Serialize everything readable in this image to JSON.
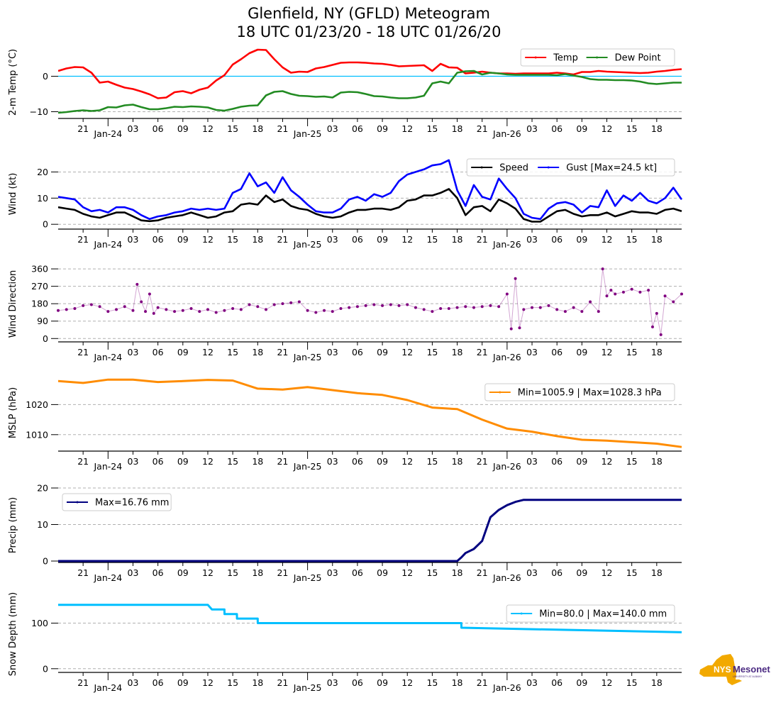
{
  "title": {
    "line1": "Glenfield, NY (GFLD) Meteogram",
    "line2": "18 UTC 01/23/20 - 18 UTC 01/26/20"
  },
  "logo": {
    "main": "NYS",
    "brand": "Mesonet",
    "sub": "UNIVERSITY AT ALBANY",
    "state_color": "#f2a900",
    "brand_color": "#4b2a82"
  },
  "x_axis": {
    "start_hour": -3,
    "end_hour": 72,
    "hour_ticks": [
      "21",
      "03",
      "06",
      "09",
      "12",
      "15",
      "18",
      "21",
      "03",
      "06",
      "09",
      "12",
      "15",
      "18",
      "21",
      "03",
      "06",
      "09",
      "12",
      "15",
      "18"
    ],
    "hour_tick_positions": [
      0,
      6,
      9,
      12,
      15,
      18,
      21,
      24,
      30,
      33,
      36,
      39,
      42,
      45,
      48,
      54,
      57,
      60,
      63,
      66,
      69
    ],
    "date_labels": [
      {
        "label": "Jan-24",
        "hour": 3
      },
      {
        "label": "Jan-25",
        "hour": 27
      },
      {
        "label": "Jan-26",
        "hour": 51
      }
    ],
    "major_tick_hours": [
      3,
      27,
      51
    ]
  },
  "chart_data": [
    {
      "type": "line",
      "name": "temperature",
      "ylabel": "2-m Temp ($^\\circ$C)",
      "ylabel_display": "2-m Temp (°C)",
      "ylim": [
        -11.5,
        8.5
      ],
      "yticks": [
        0,
        -10
      ],
      "grid_y": [
        -10
      ],
      "zero_line": {
        "value": 0,
        "color": "#00bfff"
      },
      "legend": {
        "placement": "top-right",
        "entries": [
          "Temp",
          "Dew Point"
        ]
      },
      "x_hours": [
        -3,
        -2,
        -1,
        0,
        1,
        2,
        3,
        4,
        5,
        6,
        7,
        8,
        9,
        10,
        11,
        12,
        13,
        14,
        15,
        16,
        17,
        18,
        19,
        20,
        21,
        22,
        23,
        24,
        25,
        26,
        27,
        28,
        29,
        30,
        31,
        32,
        33,
        34,
        35,
        36,
        37,
        38,
        39,
        40,
        41,
        42,
        43,
        44,
        45,
        46,
        47,
        48,
        49,
        50,
        51,
        52,
        53,
        54,
        55,
        56,
        57,
        58,
        59,
        60,
        61,
        62,
        63,
        64,
        65,
        66,
        67,
        68,
        69,
        70,
        71,
        72
      ],
      "series": [
        {
          "name": "Temp",
          "color": "#ff0000",
          "values": [
            1.5,
            2.2,
            2.6,
            2.5,
            1.0,
            -1.8,
            -1.5,
            -2.4,
            -3.2,
            -3.6,
            -4.3,
            -5.1,
            -6.2,
            -6.0,
            -4.5,
            -4.2,
            -4.8,
            -3.8,
            -3.2,
            -1.2,
            0.3,
            3.3,
            4.8,
            6.5,
            7.5,
            7.4,
            4.8,
            2.5,
            1.0,
            1.3,
            1.2,
            2.2,
            2.6,
            3.2,
            3.8,
            3.9,
            3.9,
            3.8,
            3.6,
            3.5,
            3.2,
            2.8,
            2.9,
            3.0,
            3.1,
            1.5,
            3.5,
            2.5,
            2.4,
            0.8,
            1.0,
            1.3,
            1.0,
            0.8,
            0.8,
            0.7,
            0.8,
            0.8,
            0.8,
            0.8,
            1.0,
            0.8,
            0.5,
            1.2,
            1.2,
            1.5,
            1.3,
            1.2,
            1.1,
            1.0,
            0.9,
            1.0,
            1.3,
            1.5,
            1.8,
            2.0
          ]
        },
        {
          "name": "Dew Point",
          "color": "#228b22",
          "values": [
            -10.3,
            -10.1,
            -9.8,
            -9.6,
            -9.8,
            -9.6,
            -8.7,
            -8.8,
            -8.2,
            -8.0,
            -8.7,
            -9.3,
            -9.3,
            -9.0,
            -8.6,
            -8.7,
            -8.5,
            -8.6,
            -8.8,
            -9.5,
            -9.7,
            -9.2,
            -8.6,
            -8.3,
            -8.2,
            -5.4,
            -4.4,
            -4.2,
            -5.0,
            -5.5,
            -5.6,
            -5.8,
            -5.7,
            -6.0,
            -4.6,
            -4.4,
            -4.5,
            -5.0,
            -5.6,
            -5.7,
            -6.0,
            -6.2,
            -6.2,
            -6.0,
            -5.5,
            -2.0,
            -1.5,
            -2.0,
            1.0,
            1.4,
            1.5,
            0.5,
            1.0,
            0.8,
            0.5,
            0.4,
            0.4,
            0.4,
            0.4,
            0.4,
            0.3,
            0.6,
            0.2,
            -0.2,
            -0.8,
            -1.0,
            -1.0,
            -1.1,
            -1.1,
            -1.2,
            -1.5,
            -2.0,
            -2.2,
            -2.0,
            -1.8,
            -1.8
          ]
        }
      ]
    },
    {
      "type": "line",
      "name": "wind",
      "ylabel": "Wind (kt)",
      "ylim": [
        -1.3,
        25
      ],
      "yticks": [
        0,
        10,
        20
      ],
      "grid_y": [
        0,
        10,
        20
      ],
      "legend": {
        "placement": "top-right",
        "entries": [
          "Speed",
          "Gust [Max=24.5 kt]"
        ]
      },
      "x_hours": [
        -3,
        -2,
        -1,
        0,
        1,
        2,
        3,
        4,
        5,
        6,
        7,
        8,
        9,
        10,
        11,
        12,
        13,
        14,
        15,
        16,
        17,
        18,
        19,
        20,
        21,
        22,
        23,
        24,
        25,
        26,
        27,
        28,
        29,
        30,
        31,
        32,
        33,
        34,
        35,
        36,
        37,
        38,
        39,
        40,
        41,
        42,
        43,
        44,
        45,
        46,
        47,
        48,
        49,
        50,
        51,
        52,
        53,
        54,
        55,
        56,
        57,
        58,
        59,
        60,
        61,
        62,
        63,
        64,
        65,
        66,
        67,
        68,
        69,
        70,
        71,
        72
      ],
      "series": [
        {
          "name": "Speed",
          "color": "#000000",
          "values": [
            6.5,
            6.0,
            5.5,
            4.0,
            3.0,
            2.5,
            3.5,
            4.5,
            4.5,
            3.0,
            1.5,
            1.2,
            1.5,
            2.5,
            3.0,
            3.5,
            4.5,
            3.5,
            2.5,
            3.0,
            4.5,
            5.0,
            7.5,
            8.0,
            7.5,
            11.0,
            8.5,
            9.5,
            7.0,
            6.0,
            5.5,
            4.0,
            3.0,
            2.5,
            3.0,
            4.5,
            5.5,
            5.5,
            6.0,
            6.0,
            5.5,
            6.5,
            9.0,
            9.5,
            11.0,
            11.0,
            12.0,
            13.5,
            10.0,
            3.5,
            6.5,
            7.0,
            5.0,
            9.5,
            8.0,
            6.0,
            2.0,
            1.0,
            1.0,
            3.0,
            5.0,
            5.5,
            4.0,
            3.0,
            3.5,
            3.5,
            4.5,
            3.0,
            4.0,
            5.0,
            4.5,
            4.5,
            4.0,
            5.5,
            6.0,
            5.0
          ]
        },
        {
          "name": "Gust",
          "color": "#0000ff",
          "values": [
            10.5,
            10.0,
            9.5,
            6.5,
            5.0,
            5.5,
            4.5,
            6.5,
            6.5,
            5.5,
            3.5,
            2.0,
            3.0,
            3.5,
            4.5,
            5.0,
            6.0,
            5.5,
            6.0,
            5.5,
            6.0,
            12.0,
            13.5,
            19.5,
            14.5,
            16.0,
            12.0,
            18.0,
            13.0,
            10.5,
            7.5,
            5.0,
            4.5,
            4.5,
            6.0,
            9.5,
            10.5,
            9.0,
            11.5,
            10.5,
            12.0,
            16.5,
            19.0,
            20.0,
            21.0,
            22.5,
            23.0,
            24.5,
            13.0,
            7.0,
            15.0,
            10.5,
            9.5,
            17.5,
            13.5,
            10.0,
            4.0,
            2.5,
            2.0,
            6.0,
            8.0,
            8.5,
            7.5,
            4.5,
            7.0,
            6.5,
            13.0,
            7.0,
            11.0,
            9.0,
            12.0,
            9.0,
            8.0,
            10.0,
            14.0,
            9.5
          ]
        }
      ]
    },
    {
      "type": "scatter",
      "name": "wind_direction",
      "ylabel": "Wind Direction",
      "ylim": [
        -10,
        375
      ],
      "yticks": [
        0,
        90,
        180,
        270,
        360
      ],
      "grid_y": [
        0,
        90,
        180,
        270,
        360
      ],
      "color": "#800080",
      "x_hours": [
        -3,
        -2,
        -1,
        0,
        1,
        2,
        3,
        4,
        5,
        6,
        6.5,
        7,
        7.5,
        8,
        8.5,
        9,
        10,
        11,
        12,
        13,
        14,
        15,
        16,
        17,
        18,
        19,
        20,
        21,
        22,
        23,
        24,
        25,
        26,
        27,
        28,
        29,
        30,
        31,
        32,
        33,
        34,
        35,
        36,
        37,
        38,
        39,
        40,
        41,
        42,
        43,
        44,
        45,
        46,
        47,
        48,
        49,
        50,
        51,
        51.5,
        52,
        52.5,
        53,
        54,
        55,
        56,
        57,
        58,
        59,
        60,
        61,
        62,
        62.5,
        63,
        63.5,
        64,
        65,
        66,
        67,
        68,
        68.5,
        69,
        69.5,
        70,
        71,
        72
      ],
      "values": [
        145,
        150,
        155,
        170,
        175,
        165,
        140,
        150,
        165,
        145,
        280,
        190,
        140,
        230,
        130,
        160,
        150,
        140,
        145,
        155,
        140,
        150,
        135,
        145,
        155,
        150,
        175,
        165,
        150,
        175,
        180,
        185,
        190,
        145,
        135,
        145,
        140,
        155,
        160,
        165,
        170,
        175,
        170,
        175,
        170,
        175,
        160,
        150,
        140,
        155,
        155,
        160,
        165,
        160,
        165,
        170,
        165,
        230,
        50,
        310,
        55,
        150,
        160,
        160,
        170,
        150,
        140,
        160,
        140,
        190,
        140,
        360,
        220,
        250,
        230,
        240,
        255,
        240,
        250,
        60,
        130,
        20,
        220,
        190,
        230
      ]
    },
    {
      "type": "line",
      "name": "mslp",
      "ylabel": "MSLP (hPa)",
      "ylim": [
        1005,
        1030
      ],
      "yticks": [
        1010,
        1020
      ],
      "grid_y": [
        1010,
        1020
      ],
      "color": "#ff8c00",
      "legend": {
        "placement": "top-right",
        "entries": [
          "Min=1005.9 | Max=1028.3 hPa"
        ]
      },
      "x_hours": [
        -3,
        0,
        3,
        6,
        9,
        12,
        15,
        18,
        21,
        24,
        27,
        30,
        33,
        36,
        39,
        42,
        45,
        48,
        51,
        54,
        57,
        60,
        63,
        66,
        69,
        72
      ],
      "values": [
        1027.8,
        1027.2,
        1028.3,
        1028.3,
        1027.5,
        1027.8,
        1028.2,
        1028.0,
        1025.3,
        1025.0,
        1025.8,
        1024.8,
        1023.8,
        1023.2,
        1021.5,
        1019.0,
        1018.5,
        1015.0,
        1012.0,
        1011.0,
        1009.5,
        1008.3,
        1008.0,
        1007.5,
        1007.0,
        1005.9
      ]
    },
    {
      "type": "line",
      "name": "precip",
      "ylabel": "Precip (mm)",
      "ylim": [
        0,
        20
      ],
      "yticks": [
        0,
        10,
        20
      ],
      "grid_y": [
        10,
        20
      ],
      "color": "#000080",
      "legend": {
        "placement": "top-left",
        "entries": [
          "Max=16.76 mm"
        ]
      },
      "x_hours": [
        -3,
        0,
        3,
        6,
        9,
        12,
        15,
        18,
        21,
        24,
        27,
        30,
        33,
        36,
        39,
        42,
        45,
        45.5,
        46,
        47,
        48,
        49,
        50,
        51,
        52,
        53,
        54,
        57,
        60,
        63,
        66,
        69,
        72
      ],
      "values": [
        0,
        0,
        0,
        0,
        0,
        0,
        0,
        0,
        0,
        0,
        0,
        0,
        0,
        0,
        0,
        0,
        0,
        1.0,
        2.2,
        3.3,
        5.5,
        12.0,
        14.0,
        15.3,
        16.2,
        16.76,
        16.76,
        16.76,
        16.76,
        16.76,
        16.76,
        16.76,
        16.76
      ]
    },
    {
      "type": "line",
      "name": "snow_depth",
      "ylabel": "Snow Depth (mm)",
      "ylim": [
        -5,
        160
      ],
      "yticks": [
        0,
        100
      ],
      "grid_y": [
        0,
        100
      ],
      "color": "#00bfff",
      "legend": {
        "placement": "top-right",
        "entries": [
          "Min=80.0 | Max=140.0 mm"
        ]
      },
      "x_hours": [
        -3,
        15,
        15.5,
        17,
        17.01,
        18.5,
        18.51,
        21,
        21.01,
        39,
        39.01,
        45.5,
        45.51,
        72
      ],
      "values": [
        140,
        140,
        130,
        130,
        120,
        120,
        110,
        110,
        100,
        100,
        100,
        100,
        90,
        80
      ]
    }
  ]
}
